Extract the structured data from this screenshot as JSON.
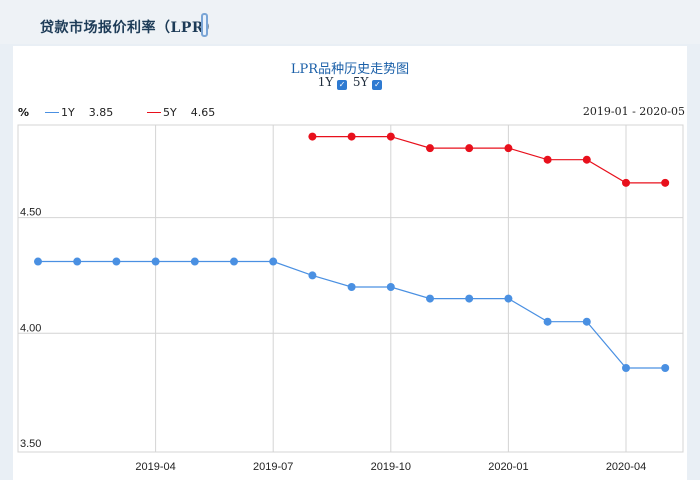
{
  "header": {
    "title": "贷款市场报价利率（LPR）"
  },
  "toggles": [
    {
      "label": "1Y",
      "checked": true
    },
    {
      "label": "5Y",
      "checked": true
    }
  ],
  "legend": {
    "unit": "%",
    "items": [
      {
        "name": "1Y",
        "value": "3.85",
        "color": "#4a90e2"
      },
      {
        "name": "5Y",
        "value": "4.65",
        "color": "#e8101c"
      }
    ]
  },
  "date_range": "2019-01 - 2020-05",
  "chart_data": {
    "type": "line",
    "title": "LPR品种历史走势图",
    "ylabel": "%",
    "ylim": [
      3.5,
      4.9
    ],
    "yticks": [
      "4.50",
      "4.00",
      "3.50"
    ],
    "xticks": [
      "2019-04",
      "2019-07",
      "2019-10",
      "2020-01",
      "2020-04"
    ],
    "x": [
      "2019-01",
      "2019-02",
      "2019-03",
      "2019-04",
      "2019-05",
      "2019-06",
      "2019-07",
      "2019-08",
      "2019-09",
      "2019-10",
      "2019-11",
      "2019-12",
      "2020-01",
      "2020-02",
      "2020-03",
      "2020-04",
      "2020-05"
    ],
    "series": [
      {
        "name": "1Y",
        "color": "#4a90e2",
        "values": [
          4.31,
          4.31,
          4.31,
          4.31,
          4.31,
          4.31,
          4.31,
          4.25,
          4.2,
          4.2,
          4.15,
          4.15,
          4.15,
          4.05,
          4.05,
          3.85,
          3.85
        ]
      },
      {
        "name": "5Y",
        "color": "#e8101c",
        "values": [
          null,
          null,
          null,
          null,
          null,
          null,
          null,
          4.85,
          4.85,
          4.85,
          4.8,
          4.8,
          4.8,
          4.75,
          4.75,
          4.65,
          4.65
        ]
      }
    ],
    "grid": true
  }
}
